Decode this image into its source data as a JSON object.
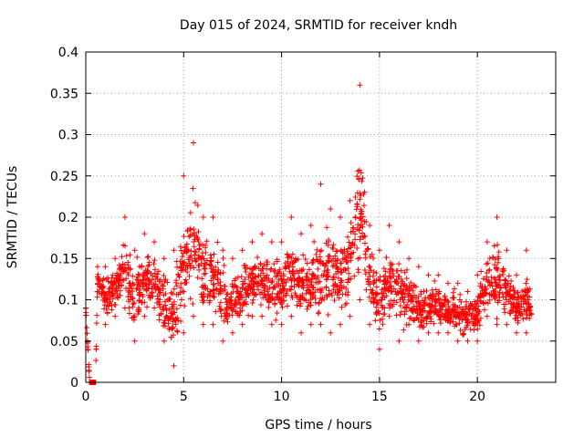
{
  "chart_data": {
    "type": "scatter",
    "title": "Day 015 of 2024, SRMTID for receiver kndh",
    "xlabel": "GPS time / hours",
    "ylabel": "SRMTID / TECUs",
    "xlim": [
      0,
      24
    ],
    "ylim": [
      0,
      0.4
    ],
    "xticks": [
      0,
      5,
      10,
      15,
      20
    ],
    "xtick_labels": [
      "0",
      "5",
      "10",
      "15",
      "20"
    ],
    "yticks": [
      0,
      0.05,
      0.1,
      0.15,
      0.2,
      0.25,
      0.3,
      0.35,
      0.4
    ],
    "ytick_labels": [
      "0",
      "0.05",
      "0.1",
      "0.15",
      "0.2",
      "0.25",
      "0.3",
      "0.35",
      "0.4"
    ],
    "grid": true,
    "marker": "plus",
    "color": "#ff0000",
    "series": [
      {
        "name": "SRMTID",
        "envelope": [
          [
            0.0,
            0.09,
            0.09
          ],
          [
            0.2,
            0.0,
            0.0
          ],
          [
            0.5,
            0.0,
            0.0
          ],
          [
            0.6,
            0.11,
            0.14
          ],
          [
            1.0,
            0.07,
            0.14
          ],
          [
            1.5,
            0.08,
            0.15
          ],
          [
            2.0,
            0.09,
            0.2
          ],
          [
            2.5,
            0.05,
            0.16
          ],
          [
            3.0,
            0.08,
            0.18
          ],
          [
            3.5,
            0.09,
            0.17
          ],
          [
            4.0,
            0.05,
            0.15
          ],
          [
            4.5,
            0.02,
            0.16
          ],
          [
            5.0,
            0.06,
            0.25
          ],
          [
            5.5,
            0.08,
            0.29
          ],
          [
            6.0,
            0.07,
            0.2
          ],
          [
            6.5,
            0.07,
            0.2
          ],
          [
            7.0,
            0.05,
            0.16
          ],
          [
            7.5,
            0.06,
            0.15
          ],
          [
            8.0,
            0.07,
            0.16
          ],
          [
            8.5,
            0.08,
            0.17
          ],
          [
            9.0,
            0.08,
            0.18
          ],
          [
            9.5,
            0.07,
            0.17
          ],
          [
            10.0,
            0.07,
            0.17
          ],
          [
            10.5,
            0.08,
            0.2
          ],
          [
            11.0,
            0.06,
            0.18
          ],
          [
            11.5,
            0.07,
            0.19
          ],
          [
            12.0,
            0.07,
            0.24
          ],
          [
            12.5,
            0.06,
            0.21
          ],
          [
            13.0,
            0.07,
            0.2
          ],
          [
            13.5,
            0.08,
            0.22
          ],
          [
            14.0,
            0.1,
            0.36
          ],
          [
            14.5,
            0.07,
            0.19
          ],
          [
            15.0,
            0.04,
            0.16
          ],
          [
            15.5,
            0.08,
            0.19
          ],
          [
            16.0,
            0.05,
            0.17
          ],
          [
            16.5,
            0.07,
            0.15
          ],
          [
            17.0,
            0.05,
            0.14
          ],
          [
            17.5,
            0.06,
            0.13
          ],
          [
            18.0,
            0.06,
            0.13
          ],
          [
            18.5,
            0.06,
            0.12
          ],
          [
            19.0,
            0.05,
            0.12
          ],
          [
            19.5,
            0.05,
            0.11
          ],
          [
            20.0,
            0.05,
            0.13
          ],
          [
            20.5,
            0.08,
            0.17
          ],
          [
            21.0,
            0.07,
            0.2
          ],
          [
            21.5,
            0.07,
            0.16
          ],
          [
            22.0,
            0.06,
            0.13
          ],
          [
            22.5,
            0.06,
            0.16
          ],
          [
            22.8,
            0.05,
            0.13
          ]
        ]
      }
    ]
  }
}
